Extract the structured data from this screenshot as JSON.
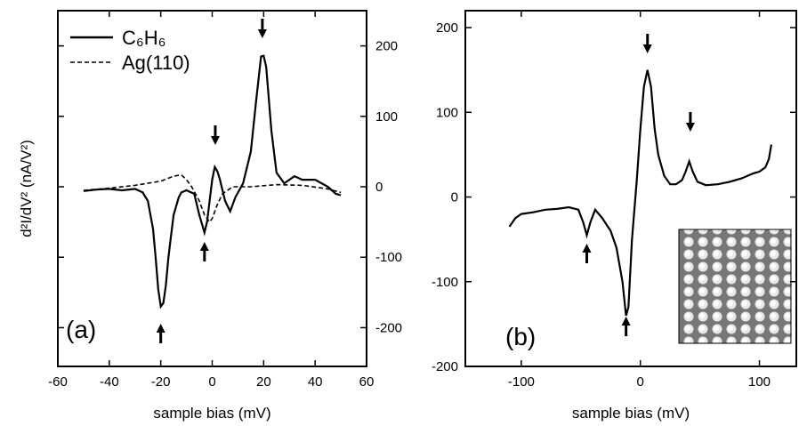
{
  "chart_data": [
    {
      "type": "line",
      "panel_label": "(a)",
      "x_label": "sample bias (mV)",
      "y_label": "d²I/dV² (nA/V²)",
      "xlim": [
        -60,
        60
      ],
      "xticks": [
        -60,
        -40,
        -20,
        0,
        20,
        40,
        60
      ],
      "ylim": [
        -255,
        250
      ],
      "yticks": [
        -200,
        -100,
        0,
        100,
        200
      ],
      "y_axis_side": "right",
      "legend": "upper left",
      "series": [
        {
          "name": "C₆H₆",
          "color": "#000000",
          "style": "solid",
          "x": [
            -50,
            -45,
            -40,
            -35,
            -30,
            -27,
            -25,
            -23,
            -22,
            -21,
            -20,
            -19,
            -18,
            -17,
            -15,
            -13,
            -12,
            -10,
            -7,
            -5,
            -3,
            -2,
            -1,
            0,
            1,
            2,
            3,
            5,
            7,
            9,
            12,
            15,
            17,
            19,
            20,
            21,
            23,
            25,
            28,
            32,
            35,
            40,
            45,
            48,
            50
          ],
          "values": [
            -6,
            -4,
            -3,
            -5,
            -3,
            -8,
            -20,
            -60,
            -100,
            -145,
            -170,
            -165,
            -140,
            -100,
            -40,
            -15,
            -8,
            -5,
            -10,
            -40,
            -65,
            -50,
            -20,
            10,
            28,
            22,
            10,
            -20,
            -35,
            -15,
            5,
            50,
            120,
            185,
            186,
            170,
            80,
            20,
            5,
            15,
            10,
            10,
            0,
            -10,
            -12
          ]
        },
        {
          "name": "Ag(110)",
          "color": "#000000",
          "style": "dashed",
          "x": [
            -50,
            -40,
            -30,
            -20,
            -15,
            -12,
            -10,
            -8,
            -5,
            -3,
            -1,
            0,
            2,
            4,
            8,
            15,
            25,
            35,
            45,
            50
          ],
          "values": [
            -5,
            -2,
            2,
            8,
            15,
            17,
            10,
            0,
            -20,
            -40,
            -50,
            -45,
            -25,
            -10,
            0,
            0,
            3,
            2,
            -3,
            -8
          ]
        }
      ]
    },
    {
      "type": "line",
      "panel_label": "(b)",
      "x_label": "sample bias (mV)",
      "xlim": [
        -147,
        131
      ],
      "xticks": [
        -100,
        0,
        100
      ],
      "ylim": [
        -200,
        220
      ],
      "yticks": [
        -200,
        -100,
        0,
        100,
        200
      ],
      "y_axis_side": "left",
      "series": [
        {
          "color": "#000000",
          "style": "solid",
          "x": [
            -110,
            -105,
            -100,
            -90,
            -80,
            -70,
            -60,
            -52,
            -48,
            -45,
            -42,
            -38,
            -32,
            -25,
            -20,
            -15,
            -12,
            -10,
            -7,
            -3,
            0,
            3,
            6,
            9,
            12,
            15,
            20,
            25,
            30,
            35,
            38,
            41,
            44,
            48,
            55,
            65,
            75,
            85,
            95,
            100,
            105,
            108,
            110
          ],
          "values": [
            -35,
            -25,
            -20,
            -18,
            -15,
            -14,
            -12,
            -15,
            -30,
            -45,
            -30,
            -15,
            -25,
            -40,
            -60,
            -100,
            -140,
            -130,
            -50,
            20,
            80,
            130,
            150,
            130,
            80,
            50,
            25,
            15,
            15,
            20,
            30,
            42,
            30,
            18,
            14,
            15,
            18,
            22,
            28,
            30,
            35,
            45,
            62
          ]
        }
      ]
    }
  ]
}
